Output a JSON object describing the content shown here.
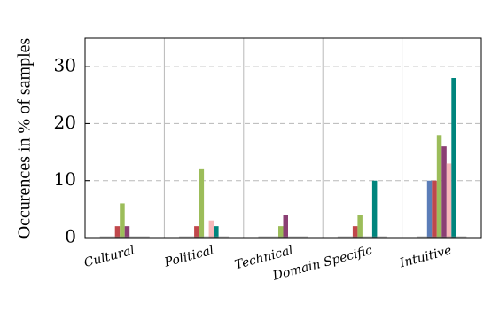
{
  "chart_data": {
    "type": "bar",
    "categories": [
      "Cultural",
      "Political",
      "Technical",
      "Domain Specific",
      "Intuitive"
    ],
    "series": [
      {
        "color": "#5b7db8",
        "values": [
          0,
          0,
          0,
          0,
          10
        ]
      },
      {
        "color": "#c0474b",
        "values": [
          2,
          2,
          0,
          2,
          10
        ]
      },
      {
        "color": "#9cbd5a",
        "values": [
          6,
          12,
          2,
          4,
          18
        ]
      },
      {
        "color": "#8b3f74",
        "values": [
          2,
          0,
          4,
          0,
          16
        ]
      },
      {
        "color": "#f7b7b9",
        "values": [
          0,
          3,
          0,
          0,
          13
        ]
      },
      {
        "color": "#00857d",
        "values": [
          0,
          2,
          0,
          10,
          28
        ]
      }
    ],
    "title": "",
    "xlabel": "",
    "ylabel": "Occurences in % of samples",
    "ylim": [
      0,
      35
    ],
    "yticks": [
      0,
      10,
      20,
      30
    ],
    "grid": {
      "horizontal": "dashed",
      "vertical_separators": true
    },
    "legend": "none"
  }
}
